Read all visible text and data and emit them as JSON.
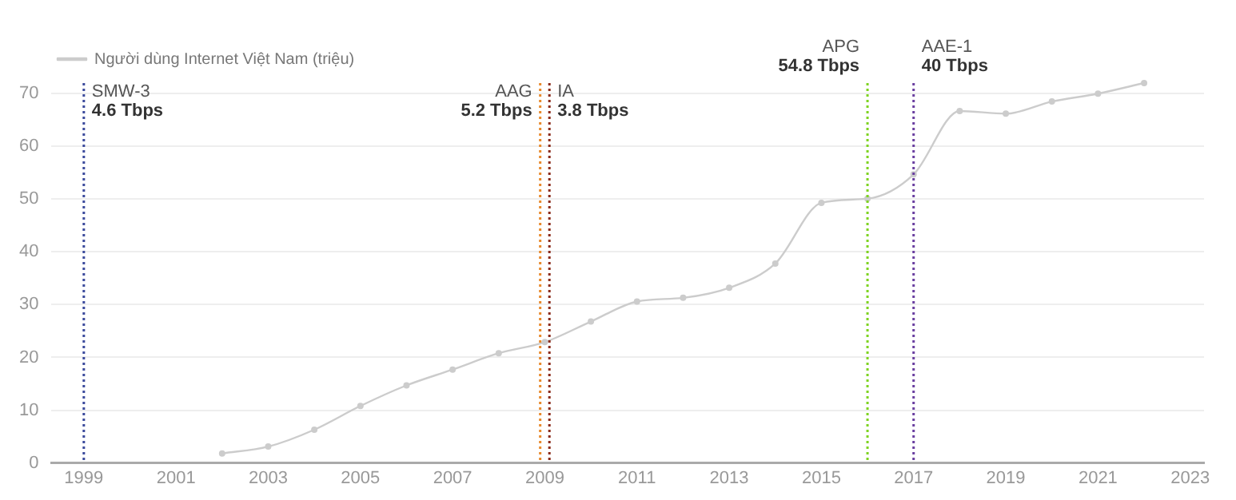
{
  "chart_data": {
    "type": "line",
    "x": [
      2002,
      2003,
      2004,
      2005,
      2006,
      2007,
      2008,
      2009,
      2010,
      2011,
      2012,
      2013,
      2014,
      2015,
      2016,
      2017,
      2018,
      2019,
      2020,
      2021,
      2022
    ],
    "series": [
      {
        "name": "Người dùng Internet Việt Nam (triệu)",
        "color": "#cccccc",
        "values": [
          1.8,
          3.1,
          6.3,
          10.8,
          14.7,
          17.7,
          20.8,
          22.9,
          26.8,
          30.6,
          31.3,
          33.2,
          37.8,
          49.3,
          50.1,
          54.7,
          66.7,
          66.2,
          68.5,
          70.0,
          72.0
        ]
      }
    ],
    "xlim": [
      1998.3,
      2023.3
    ],
    "xticks": [
      1999,
      2001,
      2003,
      2005,
      2007,
      2009,
      2011,
      2013,
      2015,
      2017,
      2019,
      2021,
      2023
    ],
    "ylim": [
      0,
      72
    ],
    "yticks": [
      0,
      10,
      20,
      30,
      40,
      50,
      60,
      70
    ],
    "grid": "y",
    "legend": "top left",
    "marker": "circle",
    "line_style": "solid",
    "ref_lines": [
      {
        "axis": "x",
        "value": 1999,
        "label": "SMW-3\n4.6 Tbps",
        "color": "#3b4a9c",
        "line_style": "dotted"
      },
      {
        "axis": "x",
        "value": 2008.9,
        "label": "AAG\n5.2 Tbps",
        "color": "#e8892b",
        "line_style": "dotted"
      },
      {
        "axis": "x",
        "value": 2009.1,
        "label": "IA\n3.8 Tbps",
        "color": "#8b2a1a",
        "line_style": "dotted"
      },
      {
        "axis": "x",
        "value": 2016,
        "label": "APG\n54.8 Tbps",
        "color": "#7ed321",
        "line_style": "dotted"
      },
      {
        "axis": "x",
        "value": 2017,
        "label": "AAE-1\n40 Tbps",
        "color": "#6a3fa0",
        "line_style": "dotted"
      }
    ]
  }
}
